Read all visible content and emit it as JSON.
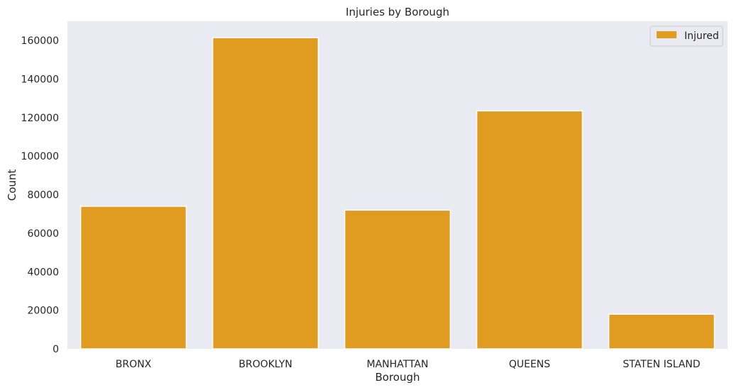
{
  "chart_data": {
    "type": "bar",
    "title": "Injuries by Borough",
    "xlabel": "Borough",
    "ylabel": "Count",
    "categories": [
      "BRONX",
      "BROOKLYN",
      "MANHATTAN",
      "QUEENS",
      "STATEN ISLAND"
    ],
    "series": [
      {
        "name": "Injured",
        "values": [
          74000,
          161500,
          72000,
          123500,
          18000
        ]
      }
    ],
    "ylim": [
      0,
      170000
    ],
    "yticks": [
      0,
      20000,
      40000,
      60000,
      80000,
      100000,
      120000,
      140000,
      160000
    ],
    "grid": false,
    "legend_position": "top-right",
    "colors": {
      "bar": "#e09c20",
      "bar_edge": "#ffffff",
      "plot_background": "#eaeaf2",
      "legend_background": "#eaeaf2"
    }
  }
}
